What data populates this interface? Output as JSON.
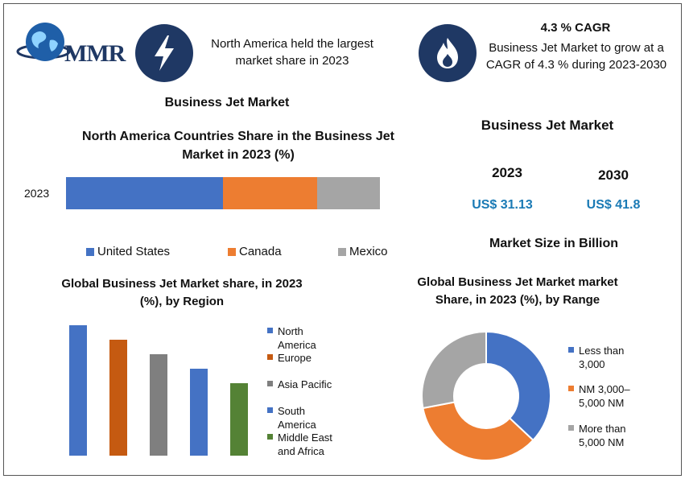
{
  "logo": {
    "text": "MMR"
  },
  "header": {
    "na_share_text": "North America held the largest market share in 2023",
    "cagr_title": "4.3 % CAGR",
    "cagr_text": "Business Jet Market to grow at a CAGR of 4.3 % during 2023-2030",
    "bolt_icon": "lightning-icon",
    "flame_icon": "flame-icon"
  },
  "market_box": {
    "title": "Business Jet Market",
    "year1": "2023",
    "year2": "2030",
    "value1": "US$ 31.13",
    "value2": "US$ 41.8",
    "unit_label": "Market Size in Billion"
  },
  "colors": {
    "blue": "#4472c4",
    "orange": "#ed7d31",
    "gray": "#a5a5a5",
    "dark_orange": "#c55a11",
    "gray_bar": "#7f7f7f",
    "green": "#548235",
    "navy": "#1f3864",
    "price_blue": "#1a7ab5"
  },
  "chart_data": [
    {
      "type": "bar",
      "orientation": "horizontal-stacked",
      "title": "Business Jet Market",
      "subtitle": "North America Countries Share in the  Business Jet Market in 2023 (%)",
      "categories": [
        "2023"
      ],
      "series": [
        {
          "name": "United States",
          "values": [
            50
          ],
          "color": "#4472c4"
        },
        {
          "name": "Canada",
          "values": [
            30
          ],
          "color": "#ed7d31"
        },
        {
          "name": "Mexico",
          "values": [
            20
          ],
          "color": "#a5a5a5"
        }
      ],
      "legend_position": "bottom"
    },
    {
      "type": "bar",
      "title": "Global Business Jet Market share, in 2023 (%), by Region",
      "categories": [
        "North America",
        "Europe",
        "Asia Pacific",
        "South America",
        "Middle East and Africa"
      ],
      "values": [
        36,
        32,
        28,
        24,
        20
      ],
      "colors": [
        "#4472c4",
        "#c55a11",
        "#7f7f7f",
        "#4472c4",
        "#548235"
      ],
      "ylim": [
        0,
        36
      ],
      "legend_position": "right"
    },
    {
      "type": "pie",
      "variant": "donut",
      "title": "Global Business Jet Market market Share, in 2023 (%), by Range",
      "categories": [
        "Less than 3,000",
        "NM 3,000–5,000 NM",
        "More than 5,000 NM"
      ],
      "values": [
        37,
        35,
        28
      ],
      "colors": [
        "#4472c4",
        "#ed7d31",
        "#a5a5a5"
      ],
      "legend_position": "right"
    }
  ]
}
